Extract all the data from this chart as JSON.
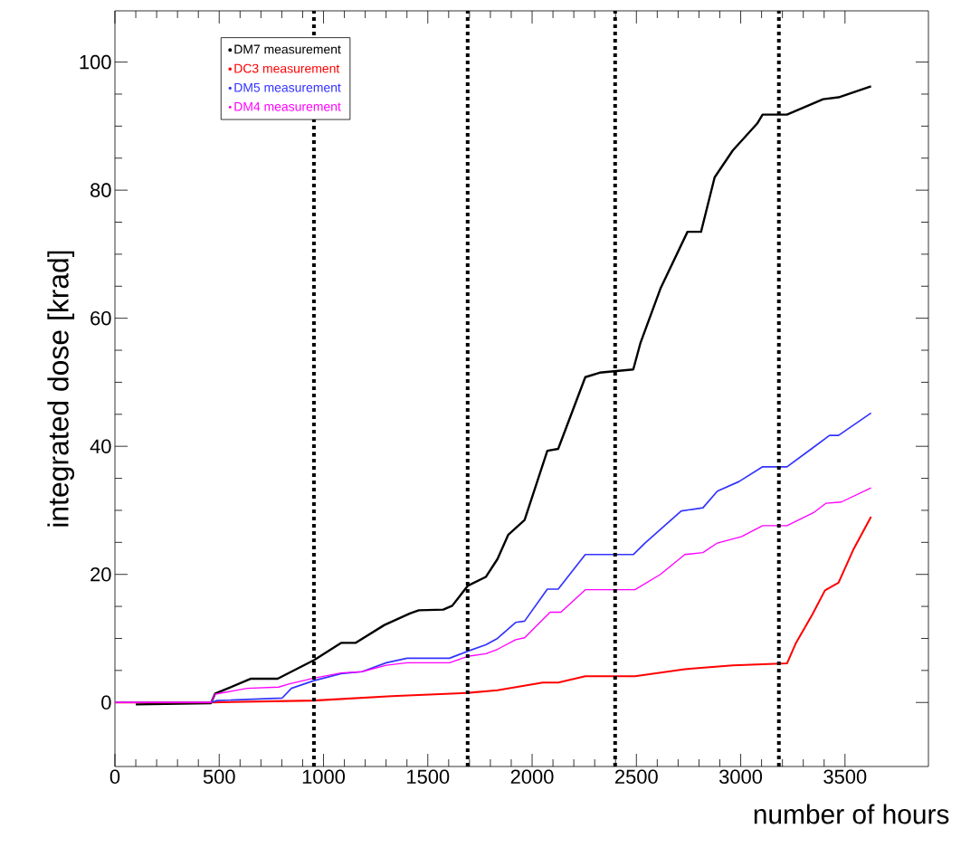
{
  "chart_data": {
    "type": "line",
    "xlabel": "number of hours",
    "ylabel": "integrated dose [krad]",
    "xlim": [
      0,
      3900
    ],
    "ylim": [
      -10,
      108
    ],
    "xticks": [
      0,
      500,
      1000,
      1500,
      2000,
      2500,
      3000,
      3500
    ],
    "yticks": [
      0,
      20,
      40,
      60,
      80,
      100
    ],
    "legend": "top left",
    "line_style": "solid",
    "ref_lines": [
      {
        "axis": "x",
        "value": 954,
        "color": "#000000",
        "line_style": "dotted"
      },
      {
        "axis": "x",
        "value": 1691,
        "color": "#000000",
        "line_style": "dotted"
      },
      {
        "axis": "x",
        "value": 2398,
        "color": "#000000",
        "line_style": "dotted"
      },
      {
        "axis": "x",
        "value": 3183,
        "color": "#000000",
        "line_style": "dotted"
      }
    ],
    "series": [
      {
        "name": "DM7 measurement",
        "color": "#000000",
        "x": [
          100,
          460,
          481,
          542,
          650,
          780,
          954,
          1084,
          1153,
          1292,
          1414,
          1457,
          1574,
          1617,
          1691,
          1778,
          1834,
          1886,
          1964,
          2073,
          2125,
          2255,
          2324,
          2485,
          2520,
          2615,
          2745,
          2810,
          2875,
          2962,
          3079,
          3105,
          3222,
          3395,
          3469,
          3625
        ],
        "values": [
          -0.3,
          -0.1,
          1.4,
          2.2,
          3.7,
          3.7,
          6.6,
          9.3,
          9.3,
          12.1,
          13.9,
          14.4,
          14.5,
          15.1,
          18.2,
          19.6,
          22.4,
          26.2,
          28.5,
          39.3,
          39.6,
          50.8,
          51.5,
          52,
          56.2,
          64.6,
          73.5,
          73.5,
          82,
          86.2,
          90.4,
          91.8,
          91.8,
          94.2,
          94.5,
          96.2
        ]
      },
      {
        "name": "DC3 measurement",
        "color": "#ff0000",
        "x": [
          0,
          460,
          954,
          1327,
          1691,
          1834,
          2051,
          2125,
          2255,
          2493,
          2732,
          2962,
          3222,
          3265,
          3343,
          3404,
          3469,
          3539,
          3625
        ],
        "values": [
          0,
          0,
          0.3,
          1,
          1.5,
          1.9,
          3.1,
          3.1,
          4.1,
          4.1,
          5.2,
          5.8,
          6.1,
          9.3,
          13.7,
          17.5,
          18.7,
          23.8,
          29
        ]
      },
      {
        "name": "DM5 measurement",
        "color": "#3333ff",
        "x": [
          0,
          460,
          490,
          802,
          846,
          954,
          1084,
          1184,
          1301,
          1400,
          1604,
          1691,
          1778,
          1834,
          1921,
          1964,
          2073,
          2125,
          2255,
          2485,
          2541,
          2715,
          2819,
          2888,
          2992,
          3105,
          3222,
          3339,
          3426,
          3469,
          3625
        ],
        "values": [
          0,
          0,
          0.3,
          0.7,
          2.2,
          3.4,
          4.5,
          4.8,
          6.2,
          6.9,
          6.9,
          8,
          9,
          10,
          12.5,
          12.7,
          17.7,
          17.7,
          23.1,
          23.1,
          24.9,
          29.9,
          30.4,
          33,
          34.5,
          36.8,
          36.8,
          39.6,
          41.7,
          41.7,
          45.2
        ]
      },
      {
        "name": "DM4 measurement",
        "color": "#ff00ff",
        "x": [
          0,
          460,
          481,
          633,
          785,
          837,
          954,
          1084,
          1184,
          1301,
          1400,
          1604,
          1691,
          1778,
          1834,
          1921,
          1964,
          2086,
          2138,
          2255,
          2493,
          2615,
          2732,
          2819,
          2888,
          3005,
          3105,
          3222,
          3352,
          3408,
          3482,
          3625
        ],
        "values": [
          0,
          0,
          1.3,
          2.2,
          2.4,
          2.9,
          3.8,
          4.6,
          4.8,
          5.8,
          6.2,
          6.2,
          7.2,
          7.6,
          8.3,
          9.8,
          10.1,
          14.1,
          14.1,
          17.6,
          17.6,
          20,
          23.1,
          23.4,
          24.9,
          25.9,
          27.6,
          27.6,
          29.7,
          31.1,
          31.3,
          33.5
        ]
      }
    ]
  }
}
